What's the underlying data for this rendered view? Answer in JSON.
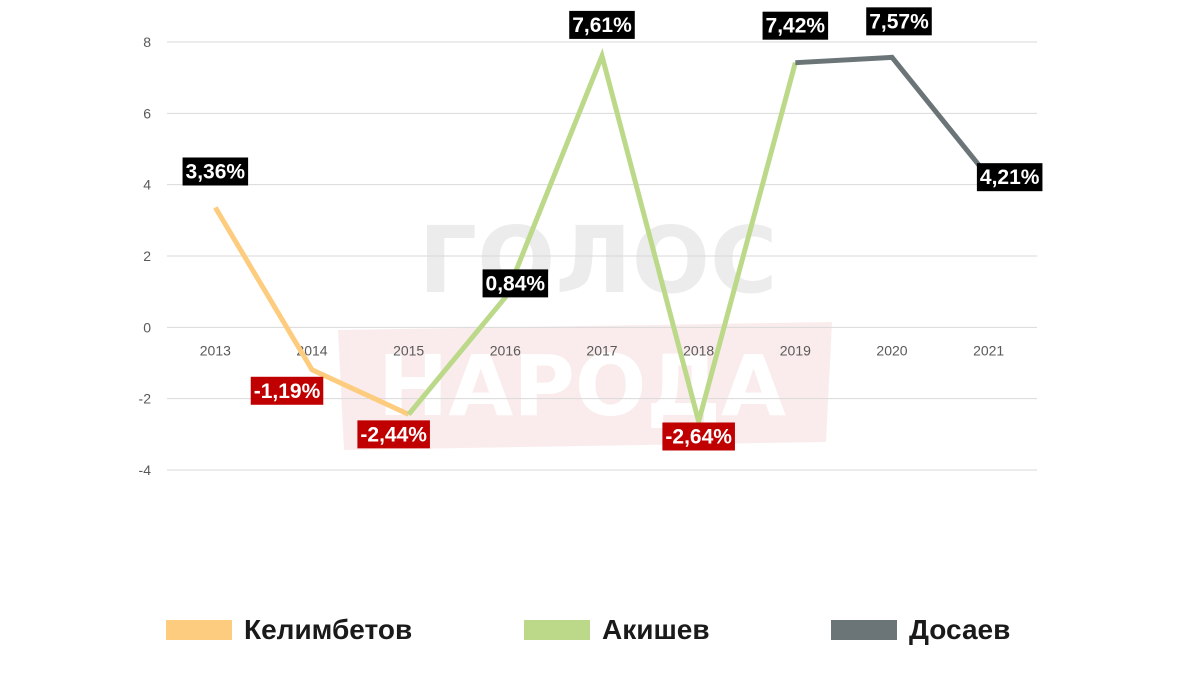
{
  "chart_data": {
    "type": "line",
    "x": [
      "2013",
      "2014",
      "2015",
      "2016",
      "2017",
      "2018",
      "2019",
      "2020",
      "2021"
    ],
    "series": [
      {
        "name": "Келимбетов",
        "color": "#fdcc7e",
        "points": [
          [
            "2013",
            3.36
          ],
          [
            "2014",
            -1.19
          ],
          [
            "2015",
            -2.44
          ]
        ]
      },
      {
        "name": "Акишев",
        "color": "#bcd98a",
        "points": [
          [
            "2015",
            -2.44
          ],
          [
            "2016",
            0.84
          ],
          [
            "2017",
            7.61
          ],
          [
            "2018",
            -2.64
          ],
          [
            "2019",
            7.42
          ]
        ]
      },
      {
        "name": "Досаев",
        "color": "#6b7578",
        "points": [
          [
            "2019",
            7.42
          ],
          [
            "2020",
            7.57
          ],
          [
            "2021",
            4.21
          ]
        ]
      }
    ],
    "data_labels": [
      {
        "x": "2013",
        "y": 3.36,
        "text": "3,36%",
        "bg": "#000000"
      },
      {
        "x": "2014",
        "y": -1.19,
        "text": "-1,19%",
        "bg": "#c00000"
      },
      {
        "x": "2015",
        "y": -2.44,
        "text": "-2,44%",
        "bg": "#c00000"
      },
      {
        "x": "2016",
        "y": 0.84,
        "text": "0,84%",
        "bg": "#000000"
      },
      {
        "x": "2017",
        "y": 7.61,
        "text": "7,61%",
        "bg": "#000000"
      },
      {
        "x": "2018",
        "y": -2.64,
        "text": "-2,64%",
        "bg": "#c00000"
      },
      {
        "x": "2019",
        "y": 7.42,
        "text": "7,42%",
        "bg": "#000000"
      },
      {
        "x": "2020",
        "y": 7.57,
        "text": "7,57%",
        "bg": "#000000"
      },
      {
        "x": "2021",
        "y": 4.21,
        "text": "4,21%",
        "bg": "#000000"
      }
    ],
    "y_ticks": [
      8,
      6,
      4,
      2,
      0,
      -2,
      -4
    ],
    "ylim": [
      -4,
      8
    ],
    "grid": true,
    "legend_position": "bottom"
  },
  "watermark": {
    "line1": "ГОЛОС",
    "line2": "НАРОДА"
  },
  "legend": [
    {
      "label": "Келимбетов",
      "color": "#fdcc7e"
    },
    {
      "label": "Акишев",
      "color": "#bcd98a"
    },
    {
      "label": "Досаев",
      "color": "#6b7578"
    }
  ]
}
